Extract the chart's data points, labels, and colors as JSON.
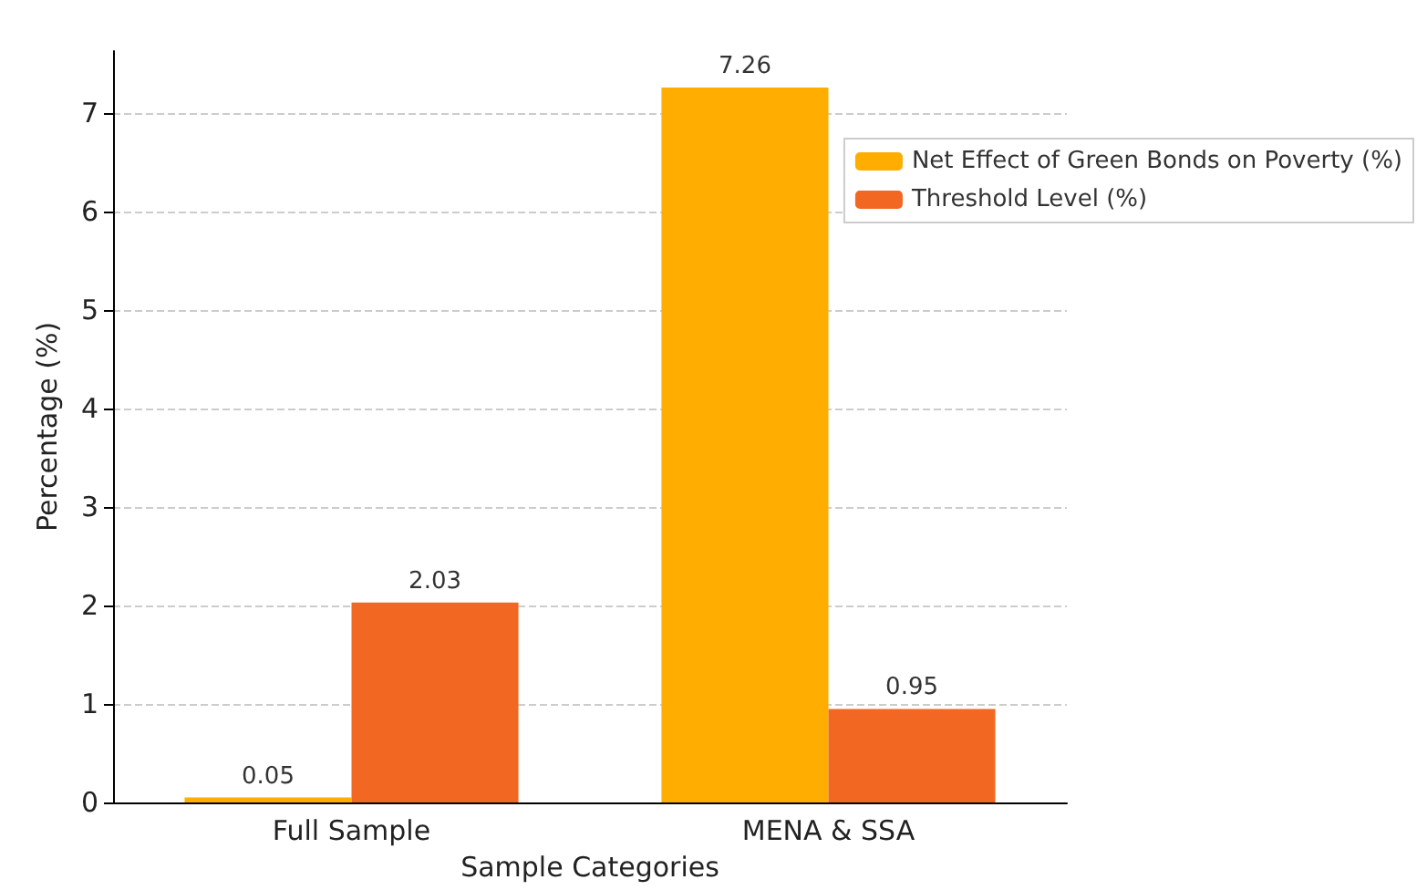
{
  "chart_data": {
    "type": "bar",
    "xlabel": "Sample Categories",
    "ylabel": "Percentage (%)",
    "categories": [
      "Full Sample",
      "MENA & SSA"
    ],
    "series": [
      {
        "name": "Net Effect of Green Bonds on Poverty (%)",
        "color": "#ffae00",
        "values": [
          0.05,
          7.26
        ]
      },
      {
        "name": "Threshold Level (%)",
        "color": "#f26722",
        "values": [
          2.03,
          0.95
        ]
      }
    ],
    "ylim": [
      0,
      7.63
    ],
    "yticks": [
      0,
      1,
      2,
      3,
      4,
      5,
      6,
      7
    ],
    "grid": true,
    "legend": "right",
    "data_labels": true
  }
}
